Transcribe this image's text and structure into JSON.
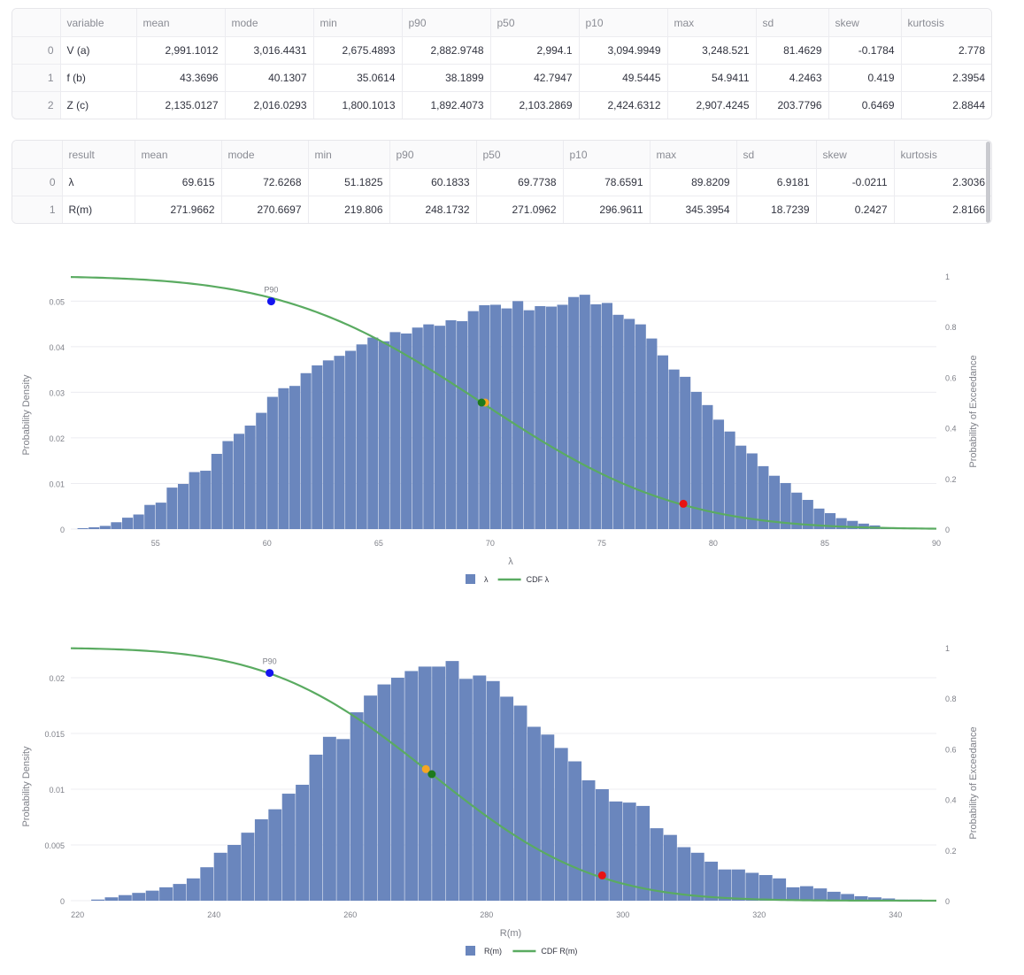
{
  "table_inputs": {
    "columns": [
      "variable",
      "mean",
      "mode",
      "min",
      "p90",
      "p50",
      "p10",
      "max",
      "sd",
      "skew",
      "kurtosis"
    ],
    "rows": [
      [
        "0",
        "V (a)",
        "2,991.1012",
        "3,016.4431",
        "2,675.4893",
        "2,882.9748",
        "2,994.1",
        "3,094.9949",
        "3,248.521",
        "81.4629",
        "-0.1784",
        "2.778"
      ],
      [
        "1",
        "f (b)",
        "43.3696",
        "40.1307",
        "35.0614",
        "38.1899",
        "42.7947",
        "49.5445",
        "54.9411",
        "4.2463",
        "0.419",
        "2.3954"
      ],
      [
        "2",
        "Z (c)",
        "2,135.0127",
        "2,016.0293",
        "1,800.1013",
        "1,892.4073",
        "2,103.2869",
        "2,424.6312",
        "2,907.4245",
        "203.7796",
        "0.6469",
        "2.8844"
      ]
    ]
  },
  "table_results": {
    "columns": [
      "result",
      "mean",
      "mode",
      "min",
      "p90",
      "p50",
      "p10",
      "max",
      "sd",
      "skew",
      "kurtosis"
    ],
    "rows": [
      [
        "0",
        "λ",
        "69.615",
        "72.6268",
        "51.1825",
        "60.1833",
        "69.7738",
        "78.6591",
        "89.8209",
        "6.9181",
        "-0.0211",
        "2.3036"
      ],
      [
        "1",
        "R(m)",
        "271.9662",
        "270.6697",
        "219.806",
        "248.1732",
        "271.0962",
        "296.9611",
        "345.3954",
        "18.7239",
        "0.2427",
        "2.8166"
      ]
    ]
  },
  "colors": {
    "bar": "#6a86bd",
    "cdf": "#5aab61",
    "p90": "#1414f0",
    "p50": "#f5a623",
    "mean": "#1d7a1d",
    "p10": "#e81414",
    "grid": "#ececf0",
    "axis_text": "#7f8189"
  },
  "chart_data": [
    {
      "type": "bar",
      "title": "",
      "xlabel": "λ",
      "ylabel": "Probability Density",
      "y2label": "Probability of Exceedance",
      "xlim": [
        51.2,
        90
      ],
      "ylim": [
        0,
        0.0555
      ],
      "y2lim": [
        0,
        1
      ],
      "xticks": [
        55,
        60,
        65,
        70,
        75,
        80,
        85,
        90
      ],
      "yticks": [
        0,
        0.01,
        0.02,
        0.03,
        0.04,
        0.05
      ],
      "yticklabels": [
        "0",
        "0.01",
        "0.02",
        "0.03",
        "0.04",
        "0.05"
      ],
      "y2ticks": [
        0,
        0.2,
        0.4,
        0.6,
        0.8,
        1
      ],
      "y2ticklabels": [
        "0",
        "0.2",
        "0.4",
        "0.6",
        "0.8",
        "1"
      ],
      "bin_start": 51.5,
      "bin_width": 0.5,
      "values": [
        0.0002,
        0.0004,
        0.0007,
        0.0015,
        0.0025,
        0.0032,
        0.0053,
        0.0058,
        0.0091,
        0.0099,
        0.0125,
        0.0128,
        0.0165,
        0.0193,
        0.0209,
        0.0227,
        0.0255,
        0.029,
        0.0309,
        0.0314,
        0.0342,
        0.0359,
        0.037,
        0.038,
        0.0391,
        0.0405,
        0.042,
        0.0412,
        0.0432,
        0.0429,
        0.0442,
        0.0449,
        0.0446,
        0.0458,
        0.0456,
        0.0478,
        0.0491,
        0.0492,
        0.0484,
        0.05,
        0.048,
        0.0489,
        0.0488,
        0.0492,
        0.0509,
        0.0514,
        0.0493,
        0.0496,
        0.047,
        0.0461,
        0.0449,
        0.0418,
        0.0381,
        0.035,
        0.0334,
        0.0301,
        0.0272,
        0.024,
        0.0214,
        0.0183,
        0.0166,
        0.0138,
        0.0117,
        0.0101,
        0.008,
        0.0064,
        0.0045,
        0.0035,
        0.0024,
        0.0018,
        0.0012,
        0.0008,
        0.0004,
        0.0002,
        0.0001
      ],
      "cdf_mean": 69.615,
      "cdf_sd": 6.9181,
      "cdf_x_start": 51.2,
      "cdf_x_end": 90,
      "points": [
        {
          "label": "P90",
          "x": 60.1833,
          "y": 0.9,
          "color_key": "p90",
          "show_label": true
        },
        {
          "label": "P50",
          "x": 69.7738,
          "y": 0.5,
          "color_key": "p50",
          "show_label": false
        },
        {
          "label": "Mean",
          "x": 69.615,
          "y": 0.5,
          "color_key": "mean",
          "show_label": false
        },
        {
          "label": "P10",
          "x": 78.6591,
          "y": 0.1,
          "color_key": "p10",
          "show_label": false
        }
      ],
      "legend": [
        "λ",
        "CDF λ"
      ]
    },
    {
      "type": "bar",
      "title": "",
      "xlabel": "R(m)",
      "ylabel": "Probability Density",
      "y2label": "Probability of Exceedance",
      "xlim": [
        219,
        346
      ],
      "ylim": [
        0,
        0.0227
      ],
      "y2lim": [
        0,
        1
      ],
      "xticks": [
        220,
        240,
        260,
        280,
        300,
        320,
        340
      ],
      "yticks": [
        0,
        0.005,
        0.01,
        0.015,
        0.02
      ],
      "yticklabels": [
        "0",
        "0.005",
        "0.01",
        "0.015",
        "0.02"
      ],
      "y2ticks": [
        0,
        0.2,
        0.4,
        0.6,
        0.8,
        1
      ],
      "y2ticklabels": [
        "0",
        "0.2",
        "0.4",
        "0.6",
        "0.8",
        "1"
      ],
      "bin_start": 222,
      "bin_width": 2,
      "values": [
        0.0001,
        0.0003,
        0.0005,
        0.0007,
        0.0009,
        0.0012,
        0.0015,
        0.002,
        0.003,
        0.0043,
        0.005,
        0.0061,
        0.0073,
        0.0082,
        0.0096,
        0.0104,
        0.0131,
        0.0147,
        0.0145,
        0.0169,
        0.0184,
        0.0194,
        0.02,
        0.0206,
        0.021,
        0.021,
        0.0215,
        0.0199,
        0.0202,
        0.0197,
        0.0183,
        0.0175,
        0.0156,
        0.0149,
        0.0137,
        0.0125,
        0.0108,
        0.01,
        0.0089,
        0.0088,
        0.0085,
        0.0065,
        0.0059,
        0.0048,
        0.0043,
        0.0035,
        0.0028,
        0.0028,
        0.0025,
        0.0023,
        0.002,
        0.0012,
        0.0013,
        0.0011,
        0.0008,
        0.0006,
        0.0004,
        0.0003,
        0.0002,
        0.0001,
        0.0001
      ],
      "cdf_mean": 271.9662,
      "cdf_sd": 18.7239,
      "cdf_x_start": 219,
      "cdf_x_end": 346,
      "points": [
        {
          "label": "P90",
          "x": 248.1732,
          "y": 0.9,
          "color_key": "p90",
          "show_label": true
        },
        {
          "label": "P50",
          "x": 271.0962,
          "y": 0.52,
          "color_key": "p50",
          "show_label": false
        },
        {
          "label": "Mean",
          "x": 271.9662,
          "y": 0.5,
          "color_key": "mean",
          "show_label": false
        },
        {
          "label": "P10",
          "x": 296.9611,
          "y": 0.1,
          "color_key": "p10",
          "show_label": false
        }
      ],
      "legend": [
        "R(m)",
        "CDF R(m)"
      ]
    }
  ]
}
